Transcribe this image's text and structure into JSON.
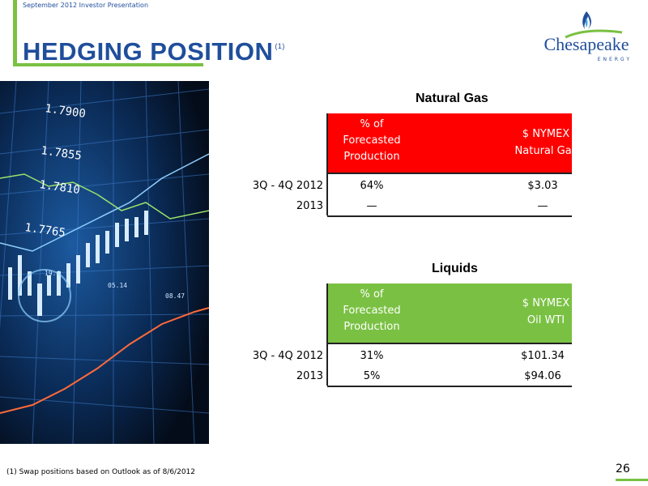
{
  "header": {
    "top_text": "September 2012 Investor Presentation",
    "title": "HEDGING POSITION",
    "title_sup": "(1)"
  },
  "logo": {
    "name": "Chesapeake",
    "sub": "ENERGY"
  },
  "photo_text": {
    "prices": [
      "1.7900",
      "1.7855",
      "1.7810",
      "1.7765"
    ],
    "small": [
      "19.4",
      "05.14",
      "08.47"
    ]
  },
  "natural_gas": {
    "title": "Natural Gas",
    "header_col1": [
      "% of",
      "Forecasted",
      "Production"
    ],
    "header_col2": [
      "$ NYMEX",
      "Natural Gas"
    ],
    "rows": [
      {
        "label": "3Q - 4Q 2012",
        "v1": "64%",
        "v2": "$3.03"
      },
      {
        "label": "2013",
        "v1": "—",
        "v2": "—"
      }
    ],
    "header_color": "#ff0000"
  },
  "liquids": {
    "title": "Liquids",
    "header_col1": [
      "% of",
      "Forecasted",
      "Production"
    ],
    "header_col2": [
      "$ NYMEX",
      "Oil WTI"
    ],
    "rows": [
      {
        "label": "3Q - 4Q 2012",
        "v1": "31%",
        "v2": "$101.34"
      },
      {
        "label": "2013",
        "v1": "5%",
        "v2": "$94.06"
      }
    ],
    "header_color": "#7ac143"
  },
  "footnote": "(1)   Swap positions based on Outlook as of 8/6/2012",
  "page_number": "26",
  "colors": {
    "brand_blue": "#1f4e9b",
    "accent_green": "#7ac143"
  }
}
